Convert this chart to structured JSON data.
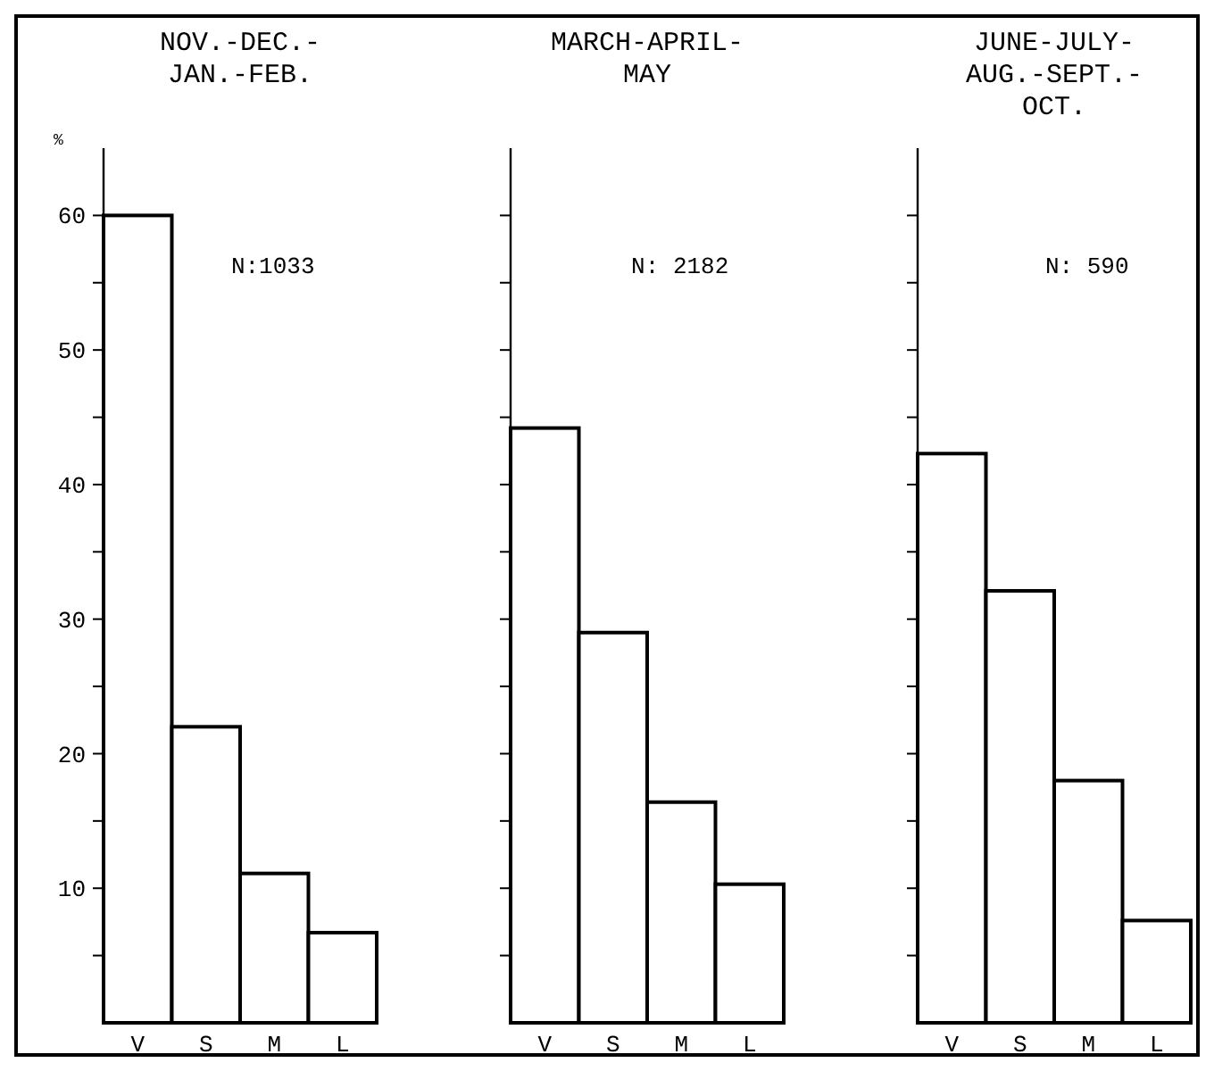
{
  "chart_data": [
    {
      "type": "bar",
      "title": "NOV.-DEC.-\nJAN.-FEB.",
      "ylabel": "%",
      "categories": [
        "V",
        "S",
        "M",
        "L"
      ],
      "values": [
        60,
        22,
        11.1,
        6.7
      ],
      "color": "#ffffff",
      "ylim": [
        0,
        65
      ],
      "yticks": [
        {
          "value": 5,
          "label": null
        },
        10,
        {
          "value": 15,
          "label": null
        },
        20,
        {
          "value": 25,
          "label": null
        },
        30,
        {
          "value": 35,
          "label": null
        },
        40,
        {
          "value": 45,
          "label": null
        },
        50,
        {
          "value": 55,
          "label": null
        },
        60
      ],
      "annotations": [
        "N:1033"
      ]
    },
    {
      "type": "bar",
      "title": "MARCH-APRIL-\nMAY",
      "categories": [
        "V",
        "S",
        "M",
        "L"
      ],
      "values": [
        44.2,
        29,
        16.4,
        10.3
      ],
      "color": "#ffffff",
      "ylim": [
        0,
        65
      ],
      "yticks": [
        {
          "value": 5,
          "label": null
        },
        {
          "value": 10,
          "label": null
        },
        {
          "value": 15,
          "label": null
        },
        {
          "value": 20,
          "label": null
        },
        {
          "value": 25,
          "label": null
        },
        {
          "value": 30,
          "label": null
        },
        {
          "value": 35,
          "label": null
        },
        {
          "value": 40,
          "label": null
        },
        {
          "value": 45,
          "label": null
        },
        {
          "value": 50,
          "label": null
        },
        {
          "value": 55,
          "label": null
        },
        {
          "value": 60,
          "label": null
        }
      ],
      "tick_labels": "x",
      "annotations": [
        "N: 2182"
      ]
    },
    {
      "type": "bar",
      "title": "JUNE-JULY-\nAUG.-SEPT.-\nOCT.",
      "categories": [
        "V",
        "S",
        "M",
        "L"
      ],
      "values": [
        42.3,
        32.1,
        18,
        7.6
      ],
      "color": "#ffffff",
      "ylim": [
        0,
        65
      ],
      "yticks": [
        {
          "value": 5,
          "label": null
        },
        {
          "value": 10,
          "label": null
        },
        {
          "value": 15,
          "label": null
        },
        {
          "value": 20,
          "label": null
        },
        {
          "value": 25,
          "label": null
        },
        {
          "value": 30,
          "label": null
        },
        {
          "value": 35,
          "label": null
        },
        {
          "value": 40,
          "label": null
        },
        {
          "value": 45,
          "label": null
        },
        {
          "value": 50,
          "label": null
        },
        {
          "value": 55,
          "label": null
        },
        {
          "value": 60,
          "label": null
        }
      ],
      "tick_labels": "x",
      "annotations": [
        "N: 590"
      ]
    }
  ]
}
